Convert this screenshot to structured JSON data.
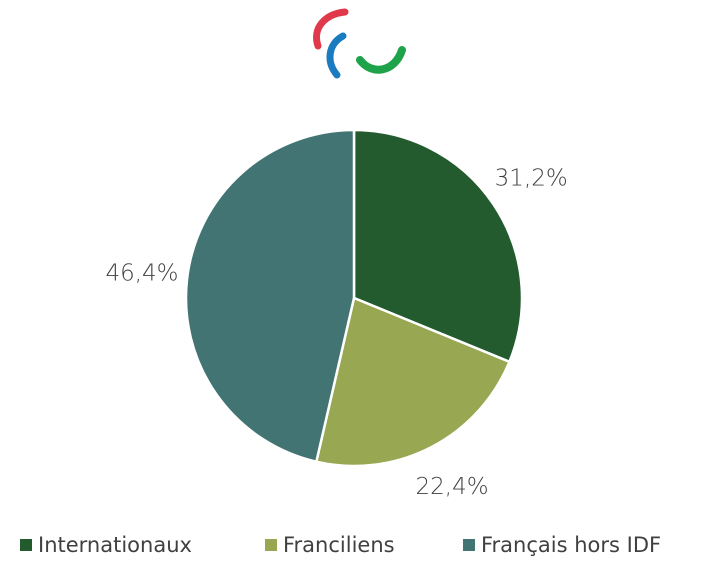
{
  "chart_data": {
    "type": "pie",
    "categories": [
      "Internationaux",
      "Franciliens",
      "Français hors IDF"
    ],
    "values": [
      31.2,
      22.4,
      46.4
    ],
    "value_labels": [
      "31,2%",
      "22,4%",
      "46,4%"
    ],
    "colors": [
      "#235a2e",
      "#98a751",
      "#417472"
    ],
    "legend": "bottom"
  }
}
